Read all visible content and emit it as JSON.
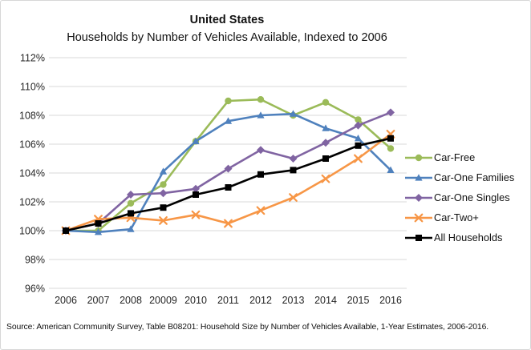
{
  "figure": {
    "title": "United States",
    "subtitle": "Households by Number of Vehicles Available, Indexed to 2006",
    "source": "Source: American Community Survey, Table B08201: Household Size by Number of Vehicles Available, 1-Year Estimates, 2006-2016."
  },
  "chart_data": {
    "type": "line",
    "title": "United States",
    "subtitle": "Households by Number of Vehicles Available, Indexed to 2006",
    "x_labels": [
      "2006",
      "2007",
      "2008",
      "20009",
      "2010",
      "2011",
      "2012",
      "2013",
      "2014",
      "2015",
      "2016"
    ],
    "y_ticks": [
      "112%",
      "110%",
      "108%",
      "106%",
      "104%",
      "102%",
      "100%",
      "98%",
      "96%"
    ],
    "ylim": [
      96,
      112
    ],
    "y_tick_step": 2,
    "grid": true,
    "legend_position": "right",
    "gridline_color": "#D9D9D9",
    "series": [
      {
        "name": "Car-Free",
        "color": "#9BBB59",
        "marker": "circle",
        "values": [
          100,
          100.0,
          101.9,
          103.2,
          106.2,
          109.0,
          109.1,
          108.0,
          108.9,
          107.7,
          105.7
        ]
      },
      {
        "name": "Car-One Families",
        "color": "#4F81BD",
        "marker": "triangle",
        "values": [
          100,
          99.9,
          100.1,
          104.1,
          106.2,
          107.6,
          108.0,
          108.1,
          107.1,
          106.4,
          104.2
        ]
      },
      {
        "name": "Car-One Singles",
        "color": "#8064A2",
        "marker": "diamond",
        "values": [
          100,
          100.5,
          102.5,
          102.6,
          102.9,
          104.3,
          105.6,
          105.0,
          106.1,
          107.3,
          108.2
        ]
      },
      {
        "name": "Car-Two+",
        "color": "#F79646",
        "marker": "x",
        "values": [
          100,
          100.8,
          100.9,
          100.7,
          101.1,
          100.5,
          101.4,
          102.3,
          103.6,
          105.0,
          106.7
        ]
      },
      {
        "name": "All Households",
        "color": "#000000",
        "marker": "square",
        "values": [
          100,
          100.5,
          101.2,
          101.6,
          102.5,
          103.0,
          103.9,
          104.2,
          105.0,
          105.9,
          106.4
        ]
      }
    ]
  }
}
